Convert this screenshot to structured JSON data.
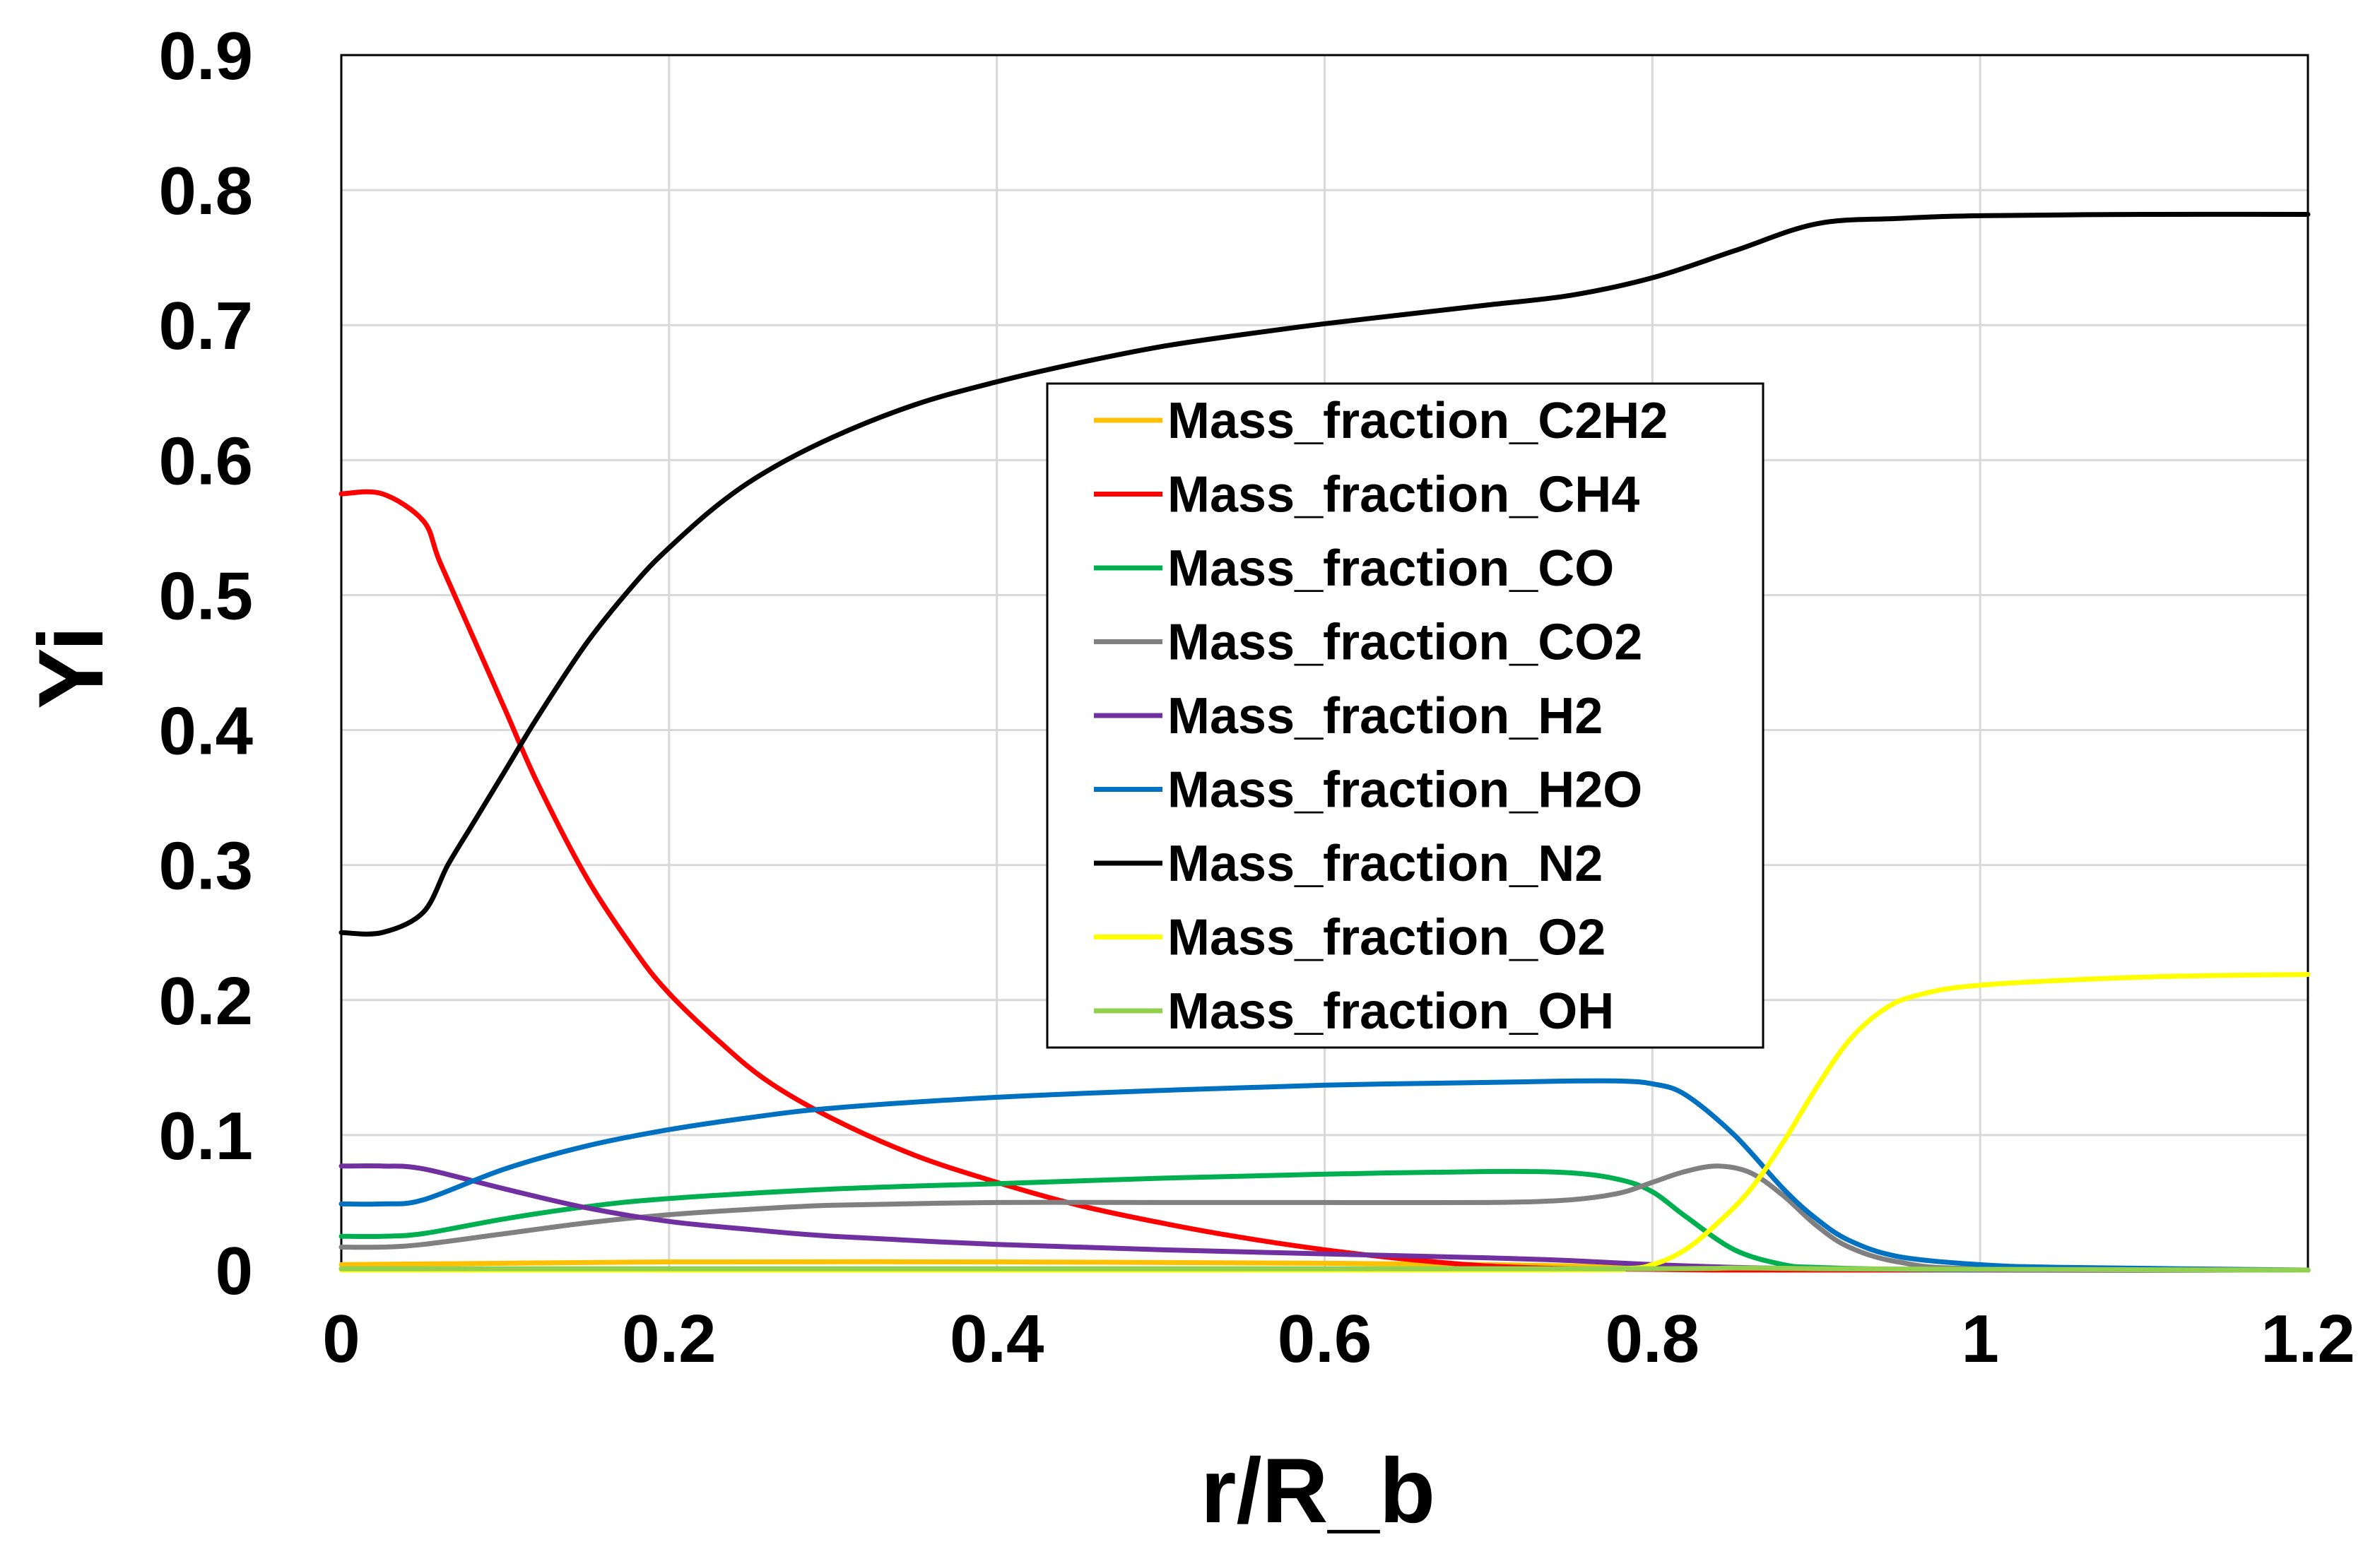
{
  "chart_data": {
    "type": "line",
    "title": "",
    "xlabel": "r/R_b",
    "ylabel": "Yi",
    "xlim": [
      0,
      1.2
    ],
    "ylim": [
      0,
      0.9
    ],
    "xticks": [
      0,
      0.2,
      0.4,
      0.6,
      0.8,
      1,
      1.2
    ],
    "xtick_labels": [
      "0",
      "0.2",
      "0.4",
      "0.6",
      "0.8",
      "1",
      "1.2"
    ],
    "yticks": [
      0,
      0.1,
      0.2,
      0.3,
      0.4,
      0.5,
      0.6,
      0.7,
      0.8,
      0.9
    ],
    "ytick_labels": [
      "0",
      "0.1",
      "0.2",
      "0.3",
      "0.4",
      "0.5",
      "0.6",
      "0.7",
      "0.8",
      "0.9"
    ],
    "grid": true,
    "legend_position": "center",
    "series": [
      {
        "name": "Mass_fraction_C2H2",
        "color": "#FFC000",
        "x": [
          0,
          0.1,
          0.2,
          0.4,
          0.6,
          0.7,
          0.75,
          0.8,
          0.85,
          1.0,
          1.2
        ],
        "y": [
          0.004,
          0.005,
          0.006,
          0.006,
          0.005,
          0.004,
          0.003,
          0.001,
          0.0005,
          0,
          0
        ]
      },
      {
        "name": "Mass_fraction_CH4",
        "color": "#FF0000",
        "x": [
          0,
          0.025,
          0.05,
          0.06,
          0.08,
          0.1,
          0.12,
          0.15,
          0.18,
          0.2,
          0.23,
          0.26,
          0.3,
          0.35,
          0.4,
          0.45,
          0.5,
          0.55,
          0.6,
          0.65,
          0.7,
          0.75,
          0.8,
          0.85,
          1.0,
          1.2
        ],
        "y": [
          0.575,
          0.575,
          0.555,
          0.525,
          0.47,
          0.415,
          0.36,
          0.29,
          0.235,
          0.205,
          0.17,
          0.14,
          0.112,
          0.085,
          0.065,
          0.048,
          0.035,
          0.024,
          0.015,
          0.008,
          0.003,
          0.001,
          0.0005,
          0,
          0,
          0
        ]
      },
      {
        "name": "Mass_fraction_CO",
        "color": "#00B050",
        "x": [
          0,
          0.025,
          0.05,
          0.1,
          0.15,
          0.2,
          0.3,
          0.4,
          0.5,
          0.6,
          0.7,
          0.75,
          0.78,
          0.8,
          0.82,
          0.85,
          0.88,
          0.9,
          0.95,
          1.0,
          1.2
        ],
        "y": [
          0.025,
          0.025,
          0.027,
          0.038,
          0.047,
          0.053,
          0.06,
          0.064,
          0.068,
          0.071,
          0.073,
          0.072,
          0.067,
          0.058,
          0.04,
          0.015,
          0.004,
          0.002,
          0.0005,
          0,
          0
        ]
      },
      {
        "name": "Mass_fraction_CO2",
        "color": "#808080",
        "x": [
          0,
          0.025,
          0.05,
          0.1,
          0.15,
          0.2,
          0.25,
          0.3,
          0.4,
          0.5,
          0.6,
          0.7,
          0.75,
          0.78,
          0.8,
          0.82,
          0.84,
          0.86,
          0.88,
          0.9,
          0.92,
          0.95,
          1.0,
          1.2
        ],
        "y": [
          0.017,
          0.017,
          0.019,
          0.027,
          0.035,
          0.041,
          0.045,
          0.048,
          0.05,
          0.05,
          0.05,
          0.05,
          0.052,
          0.057,
          0.065,
          0.073,
          0.077,
          0.072,
          0.055,
          0.033,
          0.017,
          0.006,
          0.001,
          0
        ]
      },
      {
        "name": "Mass_fraction_H2",
        "color": "#7030A0",
        "x": [
          0,
          0.025,
          0.05,
          0.1,
          0.15,
          0.2,
          0.25,
          0.3,
          0.4,
          0.5,
          0.6,
          0.7,
          0.75,
          0.8,
          0.85,
          0.9,
          1.0,
          1.2
        ],
        "y": [
          0.077,
          0.077,
          0.075,
          0.06,
          0.046,
          0.036,
          0.03,
          0.025,
          0.019,
          0.015,
          0.012,
          0.009,
          0.007,
          0.004,
          0.002,
          0.001,
          0,
          0
        ]
      },
      {
        "name": "Mass_fraction_H2O",
        "color": "#0070C0",
        "x": [
          0,
          0.025,
          0.05,
          0.1,
          0.15,
          0.2,
          0.25,
          0.3,
          0.4,
          0.5,
          0.6,
          0.7,
          0.75,
          0.78,
          0.8,
          0.82,
          0.85,
          0.88,
          0.9,
          0.92,
          0.95,
          1.0,
          1.05,
          1.2
        ],
        "y": [
          0.049,
          0.049,
          0.052,
          0.075,
          0.092,
          0.104,
          0.113,
          0.12,
          0.128,
          0.133,
          0.137,
          0.139,
          0.14,
          0.14,
          0.138,
          0.13,
          0.1,
          0.06,
          0.038,
          0.022,
          0.01,
          0.004,
          0.002,
          0
        ]
      },
      {
        "name": "Mass_fraction_N2",
        "color": "#000000",
        "x": [
          0,
          0.025,
          0.05,
          0.065,
          0.08,
          0.1,
          0.12,
          0.15,
          0.18,
          0.2,
          0.23,
          0.26,
          0.3,
          0.35,
          0.4,
          0.45,
          0.5,
          0.55,
          0.6,
          0.65,
          0.7,
          0.75,
          0.8,
          0.85,
          0.9,
          0.95,
          1.0,
          1.1,
          1.2
        ],
        "y": [
          0.25,
          0.25,
          0.265,
          0.3,
          0.33,
          0.37,
          0.41,
          0.465,
          0.51,
          0.535,
          0.567,
          0.592,
          0.617,
          0.641,
          0.658,
          0.672,
          0.684,
          0.693,
          0.701,
          0.708,
          0.715,
          0.722,
          0.735,
          0.755,
          0.775,
          0.779,
          0.781,
          0.782,
          0.782
        ]
      },
      {
        "name": "Mass_fraction_O2",
        "color": "#FFFF00",
        "x": [
          0,
          0.7,
          0.78,
          0.8,
          0.82,
          0.84,
          0.86,
          0.88,
          0.9,
          0.92,
          0.94,
          0.96,
          1.0,
          1.1,
          1.2
        ],
        "y": [
          0,
          0,
          0.001,
          0.004,
          0.015,
          0.035,
          0.06,
          0.095,
          0.135,
          0.17,
          0.192,
          0.203,
          0.211,
          0.217,
          0.219
        ]
      },
      {
        "name": "Mass_fraction_OH",
        "color": "#92D050",
        "x": [
          0,
          0.5,
          0.8,
          0.85,
          0.9,
          1.0,
          1.2
        ],
        "y": [
          0.001,
          0.001,
          0.001,
          0.0015,
          0.001,
          0.0005,
          0
        ]
      }
    ]
  }
}
